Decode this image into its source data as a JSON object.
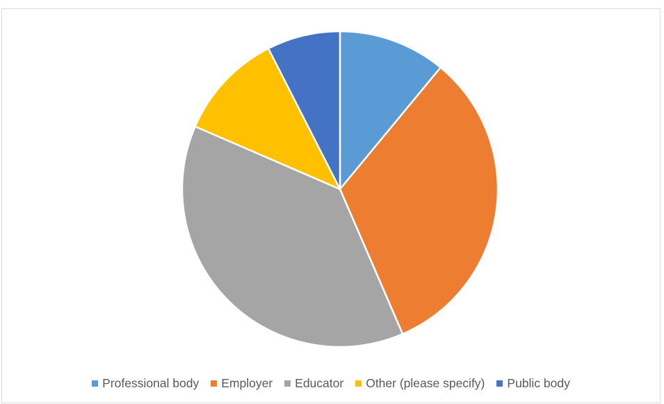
{
  "chart_data": {
    "type": "pie",
    "title": "",
    "start_angle_deg": 0,
    "direction": "clockwise",
    "legend_position": "bottom",
    "slices": [
      {
        "label": "Professional body",
        "value": 11,
        "color": "#5b9bd5"
      },
      {
        "label": "Employer",
        "value": 32.5,
        "color": "#ed7d31"
      },
      {
        "label": "Educator",
        "value": 38,
        "color": "#a5a5a5"
      },
      {
        "label": "Other (please specify)",
        "value": 11,
        "color": "#ffc000"
      },
      {
        "label": "Public body",
        "value": 7.5,
        "color": "#4472c4"
      }
    ]
  }
}
